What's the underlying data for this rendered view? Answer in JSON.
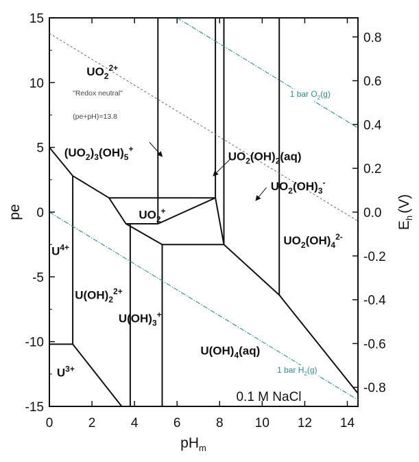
{
  "chart_data": {
    "type": "line",
    "title": "",
    "xlabel": "pH",
    "xlabel_sub": "m",
    "ylabel": "pe",
    "y2label": "E",
    "y2label_sub": "h",
    "y2label_unit": "(V)",
    "xlim": [
      0,
      14.5
    ],
    "ylim": [
      -15,
      15
    ],
    "y2lim": [
      -0.887,
      0.887
    ],
    "x_ticks": [
      0,
      2,
      4,
      6,
      8,
      10,
      12,
      14
    ],
    "y_ticks": [
      15,
      10,
      5,
      0,
      -5,
      -10,
      -15
    ],
    "y2_ticks": [
      0.8,
      0.6,
      0.4,
      0.2,
      0.0,
      -0.2,
      -0.4,
      -0.6,
      -0.8
    ],
    "y2_tick_labels": [
      "0.8",
      "0.6",
      "0.4",
      "0.2",
      "0.0",
      "-0.2",
      "-0.4",
      "-0.6",
      "-0.8"
    ],
    "medium_label": "0.1 M NaCl",
    "colors": {
      "boundary": "#111111",
      "water_limit": "#2a8f8f",
      "redox_neutral": "#666666"
    },
    "series": [
      {
        "kind": "boundary",
        "points": [
          [
            0,
            5
          ],
          [
            1.1,
            2.8
          ],
          [
            2.8,
            1.1
          ],
          [
            5.1,
            1.1
          ],
          [
            7.8,
            1.1
          ]
        ]
      },
      {
        "kind": "boundary",
        "points": [
          [
            2.8,
            1.1
          ],
          [
            3.6,
            -0.9
          ],
          [
            5.1,
            -0.9
          ],
          [
            7.8,
            1.1
          ]
        ]
      },
      {
        "kind": "boundary",
        "points": [
          [
            5.1,
            -0.9
          ],
          [
            5.1,
            15
          ]
        ]
      },
      {
        "kind": "boundary",
        "points": [
          [
            3.6,
            -0.9
          ],
          [
            5.3,
            -2.5
          ],
          [
            8.2,
            -2.5
          ],
          [
            7.8,
            1.1
          ]
        ]
      },
      {
        "kind": "boundary",
        "points": [
          [
            7.8,
            1.1
          ],
          [
            7.8,
            15
          ]
        ]
      },
      {
        "kind": "boundary",
        "points": [
          [
            8.2,
            -2.5
          ],
          [
            8.2,
            15
          ]
        ]
      },
      {
        "kind": "boundary",
        "points": [
          [
            8.2,
            -2.5
          ],
          [
            10.8,
            -6.4
          ],
          [
            14.5,
            -14.0
          ]
        ]
      },
      {
        "kind": "boundary",
        "points": [
          [
            10.8,
            -6.4
          ],
          [
            10.8,
            15
          ]
        ]
      },
      {
        "kind": "boundary",
        "points": [
          [
            1.1,
            2.8
          ],
          [
            1.1,
            -10.2
          ]
        ]
      },
      {
        "kind": "boundary",
        "points": [
          [
            0,
            -10.2
          ],
          [
            1.1,
            -10.2
          ],
          [
            3.4,
            -15
          ]
        ]
      },
      {
        "kind": "boundary",
        "points": [
          [
            3.8,
            -0.9
          ],
          [
            3.8,
            -15
          ]
        ]
      },
      {
        "kind": "boundary",
        "points": [
          [
            5.3,
            -2.5
          ],
          [
            5.3,
            -15
          ]
        ]
      },
      {
        "kind": "water_limit",
        "points": [
          [
            6,
            15
          ],
          [
            14.5,
            6.5
          ]
        ]
      },
      {
        "kind": "water_limit",
        "points": [
          [
            0,
            0
          ],
          [
            14.5,
            -14.5
          ]
        ]
      },
      {
        "kind": "redox_neutral",
        "points": [
          [
            0,
            13.8
          ],
          [
            14.5,
            -0.7
          ]
        ]
      }
    ],
    "fields": [
      {
        "x": 1.75,
        "y": 10.55,
        "parts": [
          [
            "UO",
            "n"
          ],
          [
            "2",
            "sub"
          ],
          [
            "2+",
            "sup"
          ]
        ]
      },
      {
        "x": 0.7,
        "y": 4.3,
        "parts": [
          [
            "(UO",
            "n"
          ],
          [
            "2",
            "sub"
          ],
          [
            ")",
            "n"
          ],
          [
            "3",
            "sub"
          ],
          [
            "(OH)",
            "n"
          ],
          [
            "5",
            "sub"
          ],
          [
            "+",
            "sup"
          ]
        ]
      },
      {
        "x": 4.2,
        "y": -0.5,
        "parts": [
          [
            "UO",
            "n"
          ],
          [
            "2",
            "sub"
          ],
          [
            "+",
            "sup"
          ]
        ]
      },
      {
        "x": 8.4,
        "y": 4.0,
        "parts": [
          [
            "UO",
            "n"
          ],
          [
            "2",
            "sub"
          ],
          [
            "(OH)",
            "n"
          ],
          [
            "2",
            "sub"
          ],
          [
            "(aq)",
            "n"
          ]
        ]
      },
      {
        "x": 10.4,
        "y": 1.7,
        "parts": [
          [
            "UO",
            "n"
          ],
          [
            "2",
            "sub"
          ],
          [
            "(OH)",
            "n"
          ],
          [
            "3",
            "sub"
          ],
          [
            "-",
            "sup"
          ]
        ]
      },
      {
        "x": 11.0,
        "y": -2.5,
        "parts": [
          [
            "UO",
            "n"
          ],
          [
            "2",
            "sub"
          ],
          [
            "(OH)",
            "n"
          ],
          [
            "4",
            "sub"
          ],
          [
            "2-",
            "sup"
          ]
        ]
      },
      {
        "x": 0.1,
        "y": -3.3,
        "parts": [
          [
            "U",
            "n"
          ],
          [
            "4+",
            "sup"
          ]
        ]
      },
      {
        "x": 1.2,
        "y": -6.7,
        "parts": [
          [
            "U(OH)",
            "n"
          ],
          [
            "2",
            "sub"
          ],
          [
            "2+",
            "sup"
          ]
        ]
      },
      {
        "x": 3.25,
        "y": -8.5,
        "parts": [
          [
            "U(OH)",
            "n"
          ],
          [
            "3",
            "sub"
          ],
          [
            "+",
            "sup"
          ]
        ]
      },
      {
        "x": 7.1,
        "y": -11.0,
        "parts": [
          [
            "U(OH)",
            "n"
          ],
          [
            "4",
            "sub"
          ],
          [
            "(aq)",
            "n"
          ]
        ]
      },
      {
        "x": 0.35,
        "y": -12.7,
        "parts": [
          [
            "U",
            "n"
          ],
          [
            "3+",
            "sup"
          ]
        ]
      }
    ],
    "annotations": [
      {
        "text": "\"Redox neutral\"",
        "x": 1.1,
        "y": 9.0
      },
      {
        "text": "(pe+pH)=13.8",
        "x": 1.1,
        "y": 7.2
      }
    ],
    "water_labels": [
      {
        "x": 11.3,
        "y": 8.9,
        "parts": [
          [
            "1 bar O",
            "n"
          ],
          [
            "2",
            "sub"
          ],
          [
            "(g)",
            "n"
          ]
        ]
      },
      {
        "x": 10.7,
        "y": -12.4,
        "parts": [
          [
            "1 bar H",
            "n"
          ],
          [
            "2",
            "sub"
          ],
          [
            "(g)",
            "n"
          ]
        ]
      }
    ],
    "arrows": [
      {
        "from": [
          4.7,
          5.4
        ],
        "to": [
          5.3,
          4.3
        ]
      },
      {
        "from": [
          8.5,
          4.1
        ],
        "to": [
          7.7,
          2.8
        ]
      },
      {
        "from": [
          10.2,
          1.9
        ],
        "to": [
          9.7,
          0.9
        ]
      }
    ]
  }
}
